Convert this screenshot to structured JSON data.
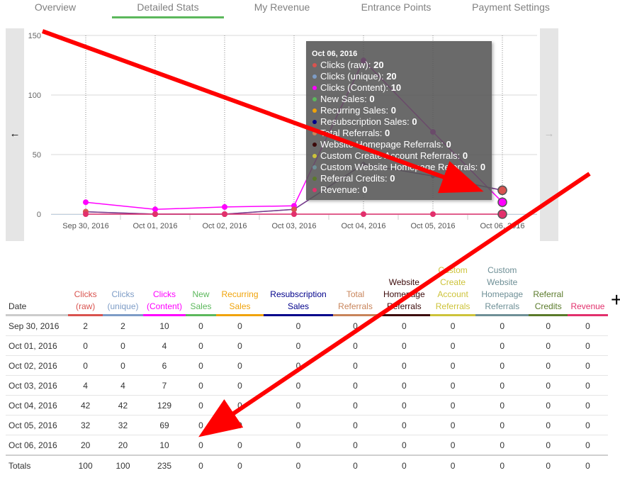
{
  "tabs": [
    {
      "label": "Overview"
    },
    {
      "label": "Detailed Stats"
    },
    {
      "label": "My Revenue"
    },
    {
      "label": "Entrance Points"
    },
    {
      "label": "Payment Settings"
    }
  ],
  "nav": {
    "left_icon": "left-arrow-icon",
    "right_icon": "right-arrow-icon",
    "left_glyph": "←",
    "right_glyph": "→"
  },
  "chart_data": {
    "type": "line",
    "categories": [
      "Sep 30, 2016",
      "Oct 01, 2016",
      "Oct 02, 2016",
      "Oct 03, 2016",
      "Oct 04, 2016",
      "Oct 05, 2016",
      "Oct 06, 2016"
    ],
    "ylim": [
      0,
      150
    ],
    "yticks": [
      "0",
      "50",
      "100",
      "150"
    ],
    "grid": true,
    "series": [
      {
        "name": "Clicks (raw)",
        "color": "#d9534f",
        "values": [
          2,
          0,
          0,
          4,
          42,
          32,
          20
        ]
      },
      {
        "name": "Clicks (unique)",
        "color": "#7d9cc6",
        "values": [
          2,
          0,
          0,
          4,
          42,
          32,
          20
        ]
      },
      {
        "name": "Clicks (Content)",
        "color": "#ff00ff",
        "values": [
          10,
          4,
          6,
          7,
          129,
          69,
          10
        ]
      },
      {
        "name": "Revenue",
        "color": "#e2306c",
        "values": [
          0,
          0,
          0,
          0,
          0,
          0,
          0
        ]
      }
    ]
  },
  "tooltip": {
    "title": "Oct 06, 2016",
    "rows": [
      {
        "label": "Clicks (raw): ",
        "value": "20",
        "color": "#d9534f"
      },
      {
        "label": "Clicks (unique): ",
        "value": "20",
        "color": "#7d9cc6"
      },
      {
        "label": "Clicks (Content): ",
        "value": "10",
        "color": "#ff00ff"
      },
      {
        "label": "New Sales: ",
        "value": "0",
        "color": "#5cb85c"
      },
      {
        "label": "Recurring Sales: ",
        "value": "0",
        "color": "#f0a30a"
      },
      {
        "label": "Resubscription Sales: ",
        "value": "0",
        "color": "#00008b"
      },
      {
        "label": "Total Referrals: ",
        "value": "0",
        "color": "#c8845a"
      },
      {
        "label": "Website Homepage Referrals: ",
        "value": "0",
        "color": "#3c0a0a"
      },
      {
        "label": "Custom Create Account Referrals: ",
        "value": "0",
        "color": "#cdc33a"
      },
      {
        "label": "Custom Website Homepage Referrals: ",
        "value": "0",
        "color": "#6e8f96"
      },
      {
        "label": "Referral Credits: ",
        "value": "0",
        "color": "#5a7a2a"
      },
      {
        "label": "Revenue: ",
        "value": "0",
        "color": "#e2306c"
      }
    ]
  },
  "table": {
    "headers": [
      {
        "label": "Date",
        "color": "#333333",
        "underline": ""
      },
      {
        "label": "Clicks (raw)",
        "color": "#d9534f",
        "underline": "#d9534f"
      },
      {
        "label": "Clicks (unique)",
        "color": "#7d9cc6",
        "underline": "#7d9cc6"
      },
      {
        "label": "Clicks (Content)",
        "color": "#ff00ff",
        "underline": "#ff00ff"
      },
      {
        "label": "New Sales",
        "color": "#5cb85c",
        "underline": "#5cb85c"
      },
      {
        "label": "Recurring Sales",
        "color": "#f0a30a",
        "underline": "#f0a30a"
      },
      {
        "label": "Resubscription Sales",
        "color": "#00008b",
        "underline": "#00008b"
      },
      {
        "label": "Total Referrals",
        "color": "#c8845a",
        "underline": "#c8845a"
      },
      {
        "label": "Website Homepage Referrals",
        "color": "#3c0a0a",
        "underline": "#3c0a0a"
      },
      {
        "label": "Custom Create Account Referrals",
        "color": "#cdc33a",
        "underline": "#cdc33a"
      },
      {
        "label": "Custom Website Homepage Referrals",
        "color": "#6e8f96",
        "underline": "#6e8f96"
      },
      {
        "label": "Referral Credits",
        "color": "#5a7a2a",
        "underline": "#5a7a2a"
      },
      {
        "label": "Revenue",
        "color": "#e2306c",
        "underline": "#e2306c"
      }
    ],
    "rows": [
      [
        "Sep 30, 2016",
        "2",
        "2",
        "10",
        "0",
        "0",
        "0",
        "0",
        "0",
        "0",
        "0",
        "0",
        "0"
      ],
      [
        "Oct 01, 2016",
        "0",
        "0",
        "4",
        "0",
        "0",
        "0",
        "0",
        "0",
        "0",
        "0",
        "0",
        "0"
      ],
      [
        "Oct 02, 2016",
        "0",
        "0",
        "6",
        "0",
        "0",
        "0",
        "0",
        "0",
        "0",
        "0",
        "0",
        "0"
      ],
      [
        "Oct 03, 2016",
        "4",
        "4",
        "7",
        "0",
        "0",
        "0",
        "0",
        "0",
        "0",
        "0",
        "0",
        "0"
      ],
      [
        "Oct 04, 2016",
        "42",
        "42",
        "129",
        "0",
        "0",
        "0",
        "0",
        "0",
        "0",
        "0",
        "0",
        "0"
      ],
      [
        "Oct 05, 2016",
        "32",
        "32",
        "69",
        "0",
        "0",
        "0",
        "0",
        "0",
        "0",
        "0",
        "0",
        "0"
      ],
      [
        "Oct 06, 2016",
        "20",
        "20",
        "10",
        "0",
        "0",
        "0",
        "0",
        "0",
        "0",
        "0",
        "0",
        "0"
      ]
    ],
    "totals": [
      "Totals",
      "100",
      "100",
      "235",
      "0",
      "0",
      "0",
      "0",
      "0",
      "0",
      "0",
      "0",
      "0"
    ]
  },
  "expand_icon": {
    "name": "plus-icon",
    "glyph": "+"
  }
}
